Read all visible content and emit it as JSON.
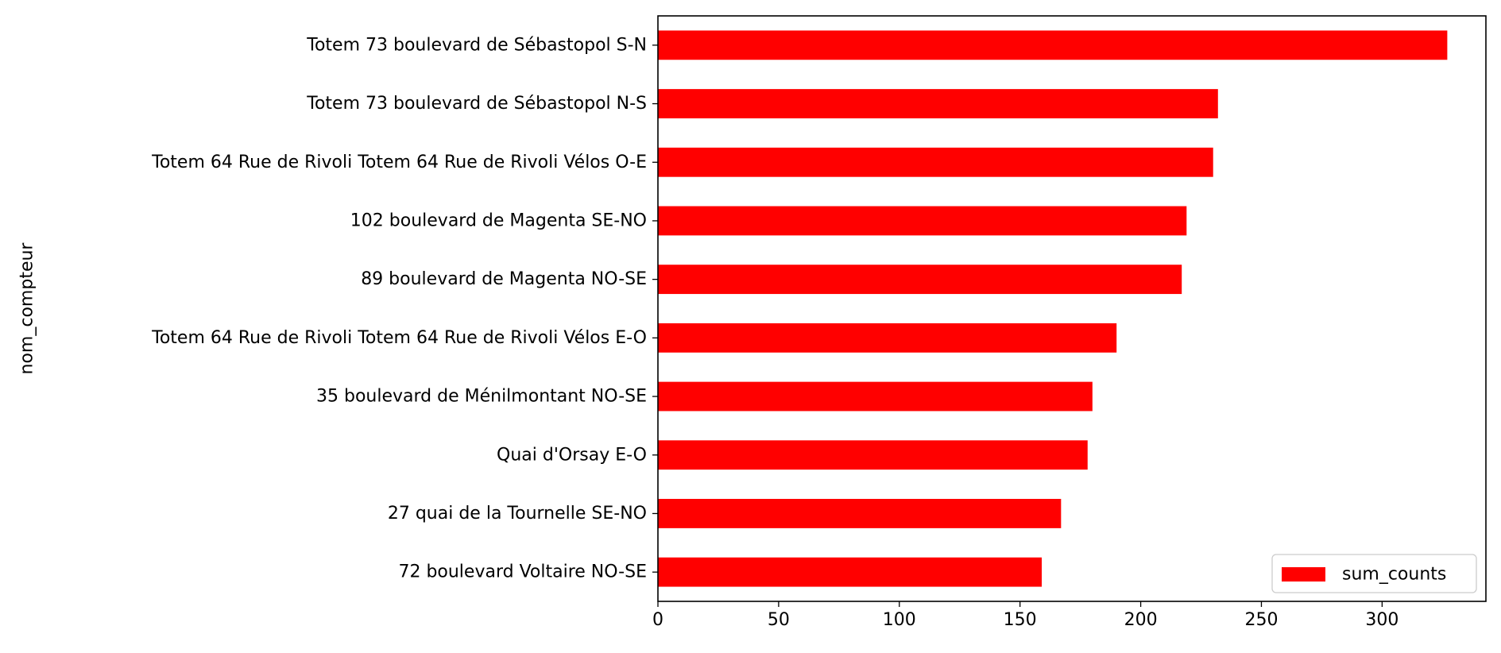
{
  "chart_data": {
    "type": "bar",
    "orientation": "horizontal",
    "title": "",
    "xlabel": "",
    "ylabel": "nom_compteur",
    "categories": [
      "Totem 73 boulevard de Sébastopol S-N",
      "Totem 73 boulevard de Sébastopol N-S",
      "Totem 64 Rue de Rivoli Totem 64 Rue de Rivoli Vélos O-E",
      "102 boulevard de Magenta SE-NO",
      "89 boulevard de Magenta NO-SE",
      "Totem 64 Rue de Rivoli Totem 64 Rue de Rivoli Vélos E-O",
      "35 boulevard de Ménilmontant NO-SE",
      "Quai d'Orsay E-O",
      "27 quai de la Tournelle SE-NO",
      "72 boulevard Voltaire NO-SE"
    ],
    "series": [
      {
        "name": "sum_counts",
        "color": "#ff0000",
        "values": [
          327,
          232,
          230,
          219,
          217,
          190,
          180,
          178,
          167,
          159
        ]
      }
    ],
    "xlim": [
      0,
      343
    ],
    "xticks": [
      0,
      50,
      100,
      150,
      200,
      250,
      300
    ],
    "grid": false,
    "legend": {
      "position": "lower-right",
      "entries": [
        "sum_counts"
      ]
    }
  }
}
